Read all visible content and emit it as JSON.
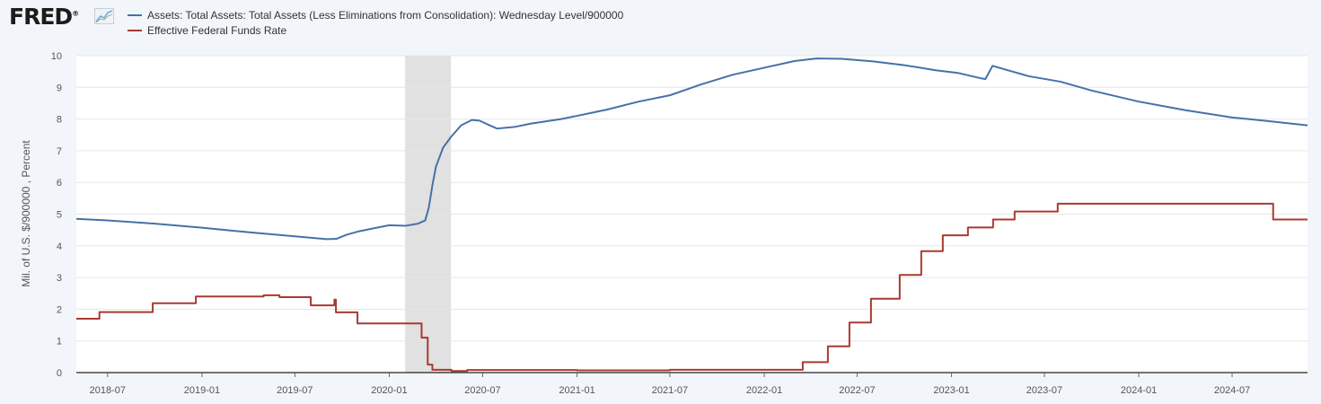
{
  "header": {
    "logo_text": "FRED",
    "logo_mark": "®",
    "logo_icon": "line-graph-icon"
  },
  "colors": {
    "assets_series": "#4572a7",
    "fedfunds_series": "#a83a32",
    "recession_band": "#e1e1e1",
    "grid": "#e6e6e6"
  },
  "chart_data": {
    "type": "line",
    "title": "",
    "xlabel": "",
    "ylabel": "Mil. of U.S. $/900000 , Percent",
    "xlim": [
      "2018-05-01",
      "2024-11-25"
    ],
    "ylim": [
      0,
      10
    ],
    "y_ticks": [
      "0",
      "1",
      "2",
      "3",
      "4",
      "5",
      "6",
      "7",
      "8",
      "9",
      "10"
    ],
    "x_ticks": [
      {
        "date": "2018-07-01",
        "label": "2018-07"
      },
      {
        "date": "2019-01-01",
        "label": "2019-01"
      },
      {
        "date": "2019-07-01",
        "label": "2019-07"
      },
      {
        "date": "2020-01-01",
        "label": "2020-01"
      },
      {
        "date": "2020-07-01",
        "label": "2020-07"
      },
      {
        "date": "2021-01-01",
        "label": "2021-01"
      },
      {
        "date": "2021-07-01",
        "label": "2021-07"
      },
      {
        "date": "2022-01-01",
        "label": "2022-01"
      },
      {
        "date": "2022-07-01",
        "label": "2022-07"
      },
      {
        "date": "2023-01-01",
        "label": "2023-01"
      },
      {
        "date": "2023-07-01",
        "label": "2023-07"
      },
      {
        "date": "2024-01-01",
        "label": "2024-01"
      },
      {
        "date": "2024-07-01",
        "label": "2024-07"
      }
    ],
    "grid": true,
    "legend_position": "top-left",
    "recession_bands": [
      {
        "start": "2020-02-01",
        "end": "2020-04-30"
      }
    ],
    "series": [
      {
        "name": "Assets: Total Assets: Total Assets (Less Eliminations from Consolidation): Wednesday Level/900000",
        "color": "#4572a7",
        "step": false,
        "points": [
          [
            "2018-05-01",
            4.85
          ],
          [
            "2018-07-01",
            4.8
          ],
          [
            "2018-10-01",
            4.7
          ],
          [
            "2019-01-01",
            4.57
          ],
          [
            "2019-04-01",
            4.43
          ],
          [
            "2019-07-01",
            4.3
          ],
          [
            "2019-09-01",
            4.21
          ],
          [
            "2019-09-20",
            4.22
          ],
          [
            "2019-10-10",
            4.35
          ],
          [
            "2019-11-01",
            4.45
          ],
          [
            "2019-12-01",
            4.55
          ],
          [
            "2020-01-01",
            4.65
          ],
          [
            "2020-02-01",
            4.63
          ],
          [
            "2020-02-26",
            4.7
          ],
          [
            "2020-03-11",
            4.8
          ],
          [
            "2020-03-18",
            5.2
          ],
          [
            "2020-03-25",
            5.9
          ],
          [
            "2020-04-01",
            6.5
          ],
          [
            "2020-04-15",
            7.1
          ],
          [
            "2020-05-01",
            7.45
          ],
          [
            "2020-05-20",
            7.8
          ],
          [
            "2020-06-10",
            7.97
          ],
          [
            "2020-06-25",
            7.95
          ],
          [
            "2020-07-15",
            7.8
          ],
          [
            "2020-07-29",
            7.7
          ],
          [
            "2020-09-01",
            7.75
          ],
          [
            "2020-10-01",
            7.85
          ],
          [
            "2020-12-01",
            8.0
          ],
          [
            "2021-01-01",
            8.1
          ],
          [
            "2021-03-01",
            8.3
          ],
          [
            "2021-05-01",
            8.55
          ],
          [
            "2021-07-01",
            8.75
          ],
          [
            "2021-09-01",
            9.1
          ],
          [
            "2021-11-01",
            9.4
          ],
          [
            "2022-01-01",
            9.62
          ],
          [
            "2022-03-01",
            9.83
          ],
          [
            "2022-04-13",
            9.91
          ],
          [
            "2022-06-01",
            9.9
          ],
          [
            "2022-08-01",
            9.82
          ],
          [
            "2022-10-01",
            9.7
          ],
          [
            "2022-12-01",
            9.54
          ],
          [
            "2023-01-15",
            9.45
          ],
          [
            "2023-03-01",
            9.28
          ],
          [
            "2023-03-08",
            9.26
          ],
          [
            "2023-03-22",
            9.68
          ],
          [
            "2023-04-12",
            9.58
          ],
          [
            "2023-06-01",
            9.35
          ],
          [
            "2023-08-01",
            9.18
          ],
          [
            "2023-10-01",
            8.9
          ],
          [
            "2024-01-01",
            8.55
          ],
          [
            "2024-04-01",
            8.28
          ],
          [
            "2024-07-01",
            8.05
          ],
          [
            "2024-09-01",
            7.95
          ],
          [
            "2024-11-25",
            7.8
          ]
        ]
      },
      {
        "name": "Effective Federal Funds Rate",
        "color": "#a83a32",
        "step": true,
        "points": [
          [
            "2018-05-01",
            1.7
          ],
          [
            "2018-06-15",
            1.91
          ],
          [
            "2018-09-27",
            2.19
          ],
          [
            "2018-12-20",
            2.4
          ],
          [
            "2019-05-01",
            2.44
          ],
          [
            "2019-06-01",
            2.38
          ],
          [
            "2019-08-01",
            2.12
          ],
          [
            "2019-09-16",
            2.3
          ],
          [
            "2019-09-19",
            1.9
          ],
          [
            "2019-10-31",
            1.55
          ],
          [
            "2020-03-04",
            1.1
          ],
          [
            "2020-03-16",
            0.25
          ],
          [
            "2020-03-25",
            0.09
          ],
          [
            "2020-05-01",
            0.05
          ],
          [
            "2020-06-01",
            0.08
          ],
          [
            "2021-01-01",
            0.07
          ],
          [
            "2021-07-01",
            0.09
          ],
          [
            "2022-03-17",
            0.33
          ],
          [
            "2022-05-05",
            0.83
          ],
          [
            "2022-06-16",
            1.58
          ],
          [
            "2022-07-28",
            2.33
          ],
          [
            "2022-09-22",
            3.08
          ],
          [
            "2022-11-03",
            3.83
          ],
          [
            "2022-12-15",
            4.33
          ],
          [
            "2023-02-02",
            4.58
          ],
          [
            "2023-03-23",
            4.83
          ],
          [
            "2023-05-04",
            5.08
          ],
          [
            "2023-07-27",
            5.33
          ],
          [
            "2024-09-19",
            4.83
          ],
          [
            "2024-11-25",
            4.83
          ]
        ]
      }
    ]
  }
}
